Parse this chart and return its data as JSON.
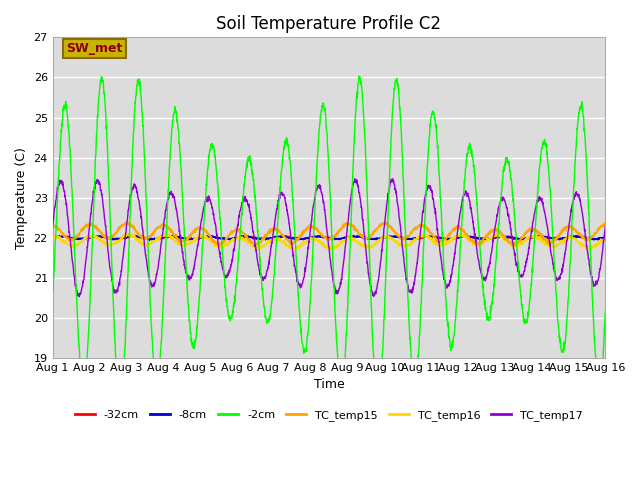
{
  "title": "Soil Temperature Profile C2",
  "xlabel": "Time",
  "ylabel": "Temperature (C)",
  "ylim": [
    19.0,
    27.0
  ],
  "yticks": [
    19.0,
    20.0,
    21.0,
    22.0,
    23.0,
    24.0,
    25.0,
    26.0,
    27.0
  ],
  "x_labels": [
    "Aug 1",
    "Aug 2",
    "Aug 3",
    "Aug 4",
    "Aug 5",
    "Aug 6",
    "Aug 7",
    "Aug 8",
    "Aug 9",
    "Aug 10",
    "Aug 11",
    "Aug 12",
    "Aug 13",
    "Aug 14",
    "Aug 15",
    "Aug 16"
  ],
  "annotation_text": "SW_met",
  "annotation_color": "#8B0000",
  "annotation_bg": "#C8B400",
  "annotation_border": "#8B6914",
  "colors": {
    "-32cm": "#FF0000",
    "-8cm": "#0000CD",
    "-2cm": "#00FF00",
    "TC_temp15": "#FFA500",
    "TC_temp16": "#FFD700",
    "TC_temp17": "#9400D3"
  },
  "bg_color": "#DCDCDC",
  "grid_color": "#FFFFFF",
  "n_points": 2000,
  "period": 1.0,
  "base_temp": 22.0,
  "amp_2cm_base": 3.0,
  "amp_2cm_var_mag": 0.35,
  "amp_2cm_var_period": 7.0,
  "phase_2cm": -0.5,
  "amp_17_base": 1.2,
  "amp_17_var_mag": 0.2,
  "amp_17_var_period": 8.0,
  "phase_17": 0.2,
  "amp_15": 0.18,
  "phase_15": 1.5,
  "base_15": 22.1,
  "amp_16": 0.12,
  "phase_16": 1.2,
  "base_16": 21.9,
  "amp_32": 0.03,
  "amp_8": 0.03
}
